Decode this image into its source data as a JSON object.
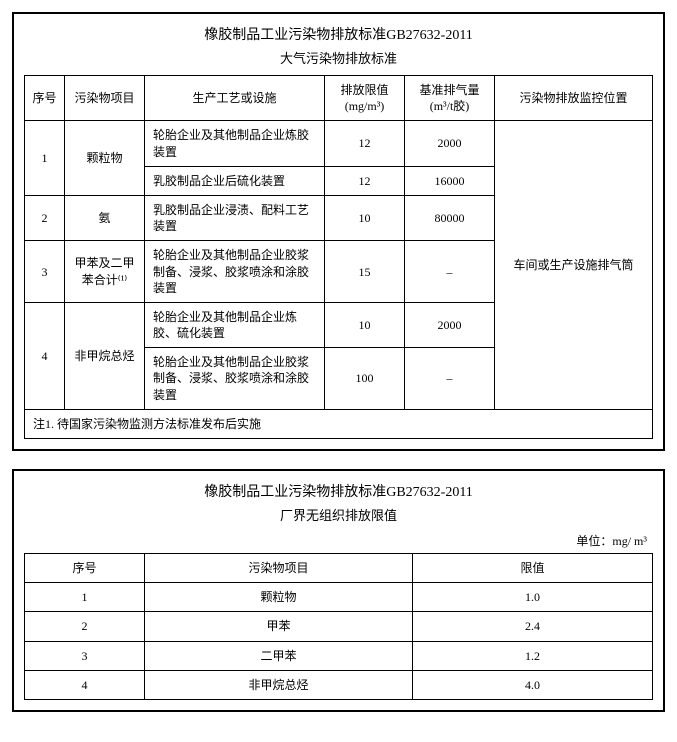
{
  "table1": {
    "title": "橡胶制品工业污染物排放标准GB27632-2011",
    "subtitle": "大气污染物排放标准",
    "headers": {
      "seq": "序号",
      "item": "污染物项目",
      "proc": "生产工艺或设施",
      "limit": "排放限值\n(mg/m³)",
      "vol": "基准排气量\n(m³/t胶)",
      "loc": "污染物排放监控位置"
    },
    "loc_value": "车间或生产设施排气筒",
    "rows": [
      {
        "seq": "1",
        "item": "颗粒物",
        "proc": "轮胎企业及其他制品企业炼胶装置",
        "limit": "12",
        "vol": "2000"
      },
      {
        "proc": "乳胶制品企业后硫化装置",
        "limit": "12",
        "vol": "16000"
      },
      {
        "seq": "2",
        "item": "氨",
        "proc": "乳胶制品企业浸渍、配料工艺装置",
        "limit": "10",
        "vol": "80000"
      },
      {
        "seq": "3",
        "item": "甲苯及二甲苯合计⁽¹⁾",
        "proc": "轮胎企业及其他制品企业胶浆制备、浸浆、胶浆喷涂和涂胶装置",
        "limit": "15",
        "vol": "–"
      },
      {
        "seq": "4",
        "item": "非甲烷总烃",
        "proc": "轮胎企业及其他制品企业炼胶、硫化装置",
        "limit": "10",
        "vol": "2000"
      },
      {
        "proc": "轮胎企业及其他制品企业胶浆制备、浸浆、胶浆喷涂和涂胶装置",
        "limit": "100",
        "vol": "–"
      }
    ],
    "footnote": "注1. 待国家污染物监测方法标准发布后实施"
  },
  "table2": {
    "title": "橡胶制品工业污染物排放标准GB27632-2011",
    "subtitle": "厂界无组织排放限值",
    "unit": "单位：mg/ m³",
    "headers": {
      "seq": "序号",
      "item": "污染物项目",
      "limit": "限值"
    },
    "rows": [
      {
        "seq": "1",
        "item": "颗粒物",
        "limit": "1.0"
      },
      {
        "seq": "2",
        "item": "甲苯",
        "limit": "2.4"
      },
      {
        "seq": "3",
        "item": "二甲苯",
        "limit": "1.2"
      },
      {
        "seq": "4",
        "item": "非甲烷总烃",
        "limit": "4.0"
      }
    ]
  }
}
